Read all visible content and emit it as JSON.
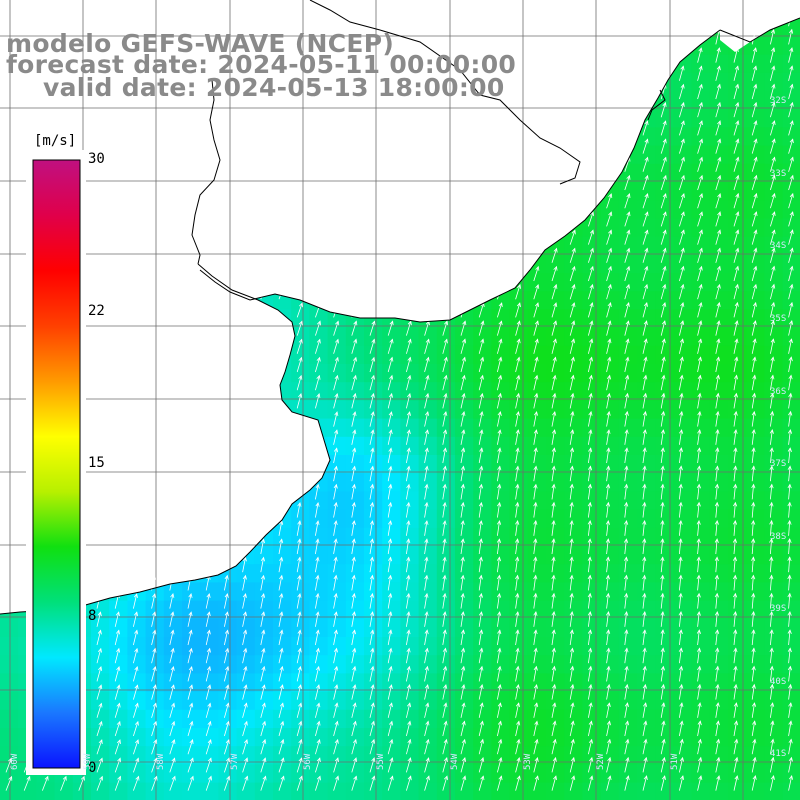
{
  "title": {
    "line1": "modelo GEFS-WAVE (NCEP)",
    "line2": "forecast date: 2024-05-11 00:00:00",
    "line3": "valid date: 2024-05-13 18:00:00"
  },
  "colorbar": {
    "unit": "[m/s]",
    "ticks": [
      "30",
      "22",
      "15",
      "8",
      "0"
    ],
    "stops": [
      "#0a14ff",
      "#1a78ff",
      "#00e8ff",
      "#00e07a",
      "#10e010",
      "#b8f000",
      "#ffff00",
      "#ff9a00",
      "#ff4000",
      "#ff0000",
      "#e0004a",
      "#c01080"
    ]
  },
  "lat_labels": [
    "32S",
    "33S",
    "34S",
    "35S",
    "36S",
    "37S",
    "38S",
    "39S",
    "40S",
    "41S"
  ],
  "lon_labels": [
    "60W",
    "59W",
    "58W",
    "57W",
    "56W",
    "55W",
    "54W",
    "53W",
    "52W",
    "51W"
  ],
  "colors": {
    "land": "#ffffff",
    "grid": "#6e6e6e",
    "coast": "#000000",
    "arrow": "#ffffff"
  }
}
